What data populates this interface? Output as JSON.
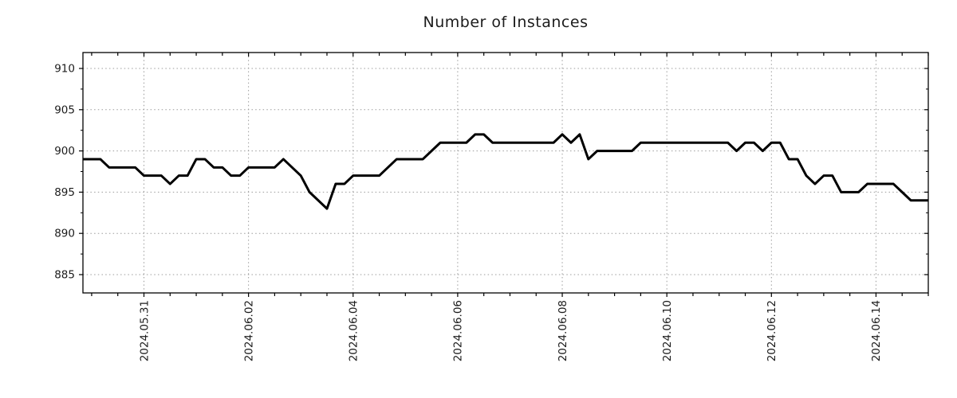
{
  "chart_data": {
    "type": "line",
    "title": "Number of Instances",
    "xlabel": "",
    "ylabel": "",
    "legend": "none",
    "grid": "dotted major gridlines, minor ticks without gridlines",
    "series_name": "instances",
    "sample_interval_hours": 4,
    "x_tick_labels": [
      "2024.05.31",
      "2024.06.02",
      "2024.06.04",
      "2024.06.06",
      "2024.06.08",
      "2024.06.10",
      "2024.06.12",
      "2024.06.14"
    ],
    "x_major_tick_indices": [
      7,
      19,
      31,
      43,
      55,
      67,
      79,
      91
    ],
    "x_minor_tick_every_points": 3,
    "x_minor_tick_offset": 1,
    "yticks": [
      885,
      890,
      895,
      900,
      905,
      910
    ],
    "y_minor_ticks": [
      887.5,
      892.5,
      897.5,
      902.5,
      907.5
    ],
    "ylim": [
      882.78,
      911.93
    ],
    "values": [
      899,
      899,
      899,
      898,
      898,
      898,
      898,
      897,
      897,
      897,
      896,
      897,
      897,
      899,
      899,
      898,
      898,
      897,
      897,
      898,
      898,
      898,
      898,
      899,
      898,
      897,
      895,
      894,
      893,
      896,
      896,
      897,
      897,
      897,
      897,
      898,
      899,
      899,
      899,
      899,
      900,
      901,
      901,
      901,
      901,
      902,
      902,
      901,
      901,
      901,
      901,
      901,
      901,
      901,
      901,
      902,
      901,
      902,
      899,
      900,
      900,
      900,
      900,
      900,
      901,
      901,
      901,
      901,
      901,
      901,
      901,
      901,
      901,
      901,
      901,
      900,
      901,
      901,
      900,
      901,
      901,
      899,
      899,
      897,
      896,
      897,
      897,
      895,
      895,
      895,
      896,
      896,
      896,
      896,
      895,
      894,
      894,
      894
    ],
    "colors": {
      "line": "#000000",
      "grid": "#9c9c9c",
      "axis": "#000000",
      "background": "#ffffff",
      "text": "#1c1c1c"
    }
  }
}
